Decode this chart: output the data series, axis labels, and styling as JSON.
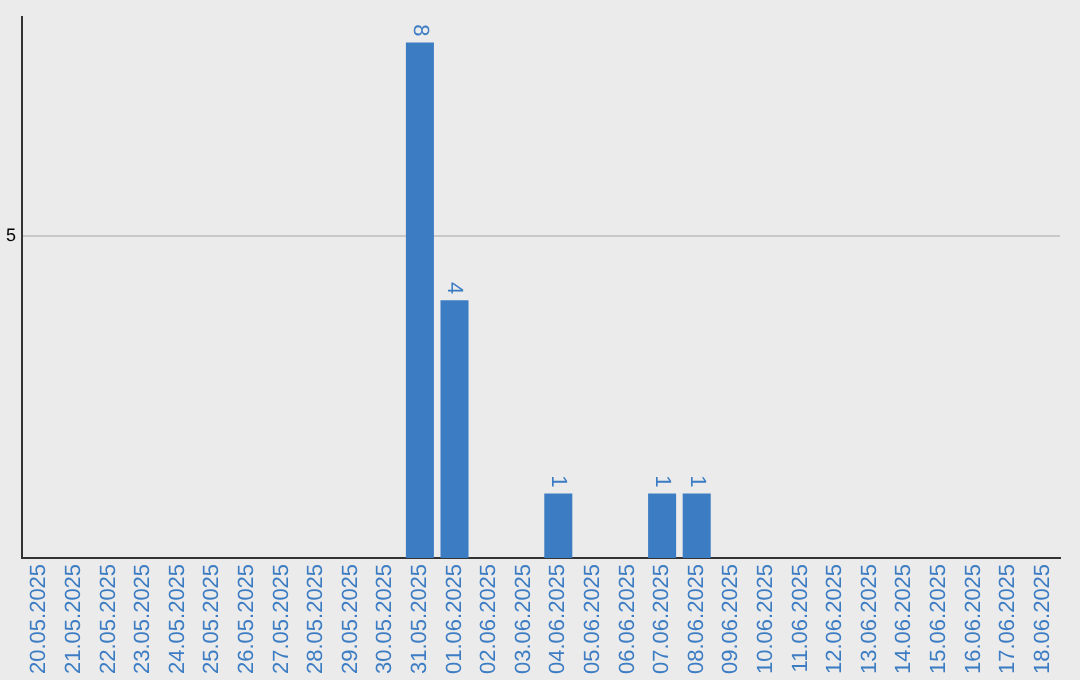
{
  "chart_data": {
    "type": "bar",
    "categories": [
      "20.05.2025",
      "21.05.2025",
      "22.05.2025",
      "23.05.2025",
      "24.05.2025",
      "25.05.2025",
      "26.05.2025",
      "27.05.2025",
      "28.05.2025",
      "29.05.2025",
      "30.05.2025",
      "31.05.2025",
      "01.06.2025",
      "02.06.2025",
      "03.06.2025",
      "04.06.2025",
      "05.06.2025",
      "06.06.2025",
      "07.06.2025",
      "08.06.2025",
      "09.06.2025",
      "10.06.2025",
      "11.06.2025",
      "12.06.2025",
      "13.06.2025",
      "14.06.2025",
      "15.06.2025",
      "16.06.2025",
      "17.06.2025",
      "18.06.2025"
    ],
    "values": [
      0,
      0,
      0,
      0,
      0,
      0,
      0,
      0,
      0,
      0,
      0,
      8,
      4,
      0,
      0,
      1,
      0,
      0,
      1,
      1,
      0,
      0,
      0,
      0,
      0,
      0,
      0,
      0,
      0,
      0
    ],
    "value_labels": [
      null,
      null,
      null,
      null,
      null,
      null,
      null,
      null,
      null,
      null,
      null,
      "8",
      "4",
      null,
      null,
      "1",
      null,
      null,
      "1",
      "1",
      null,
      null,
      null,
      null,
      null,
      null,
      null,
      null,
      null,
      null
    ],
    "color": "#3c7cc3",
    "ylim": [
      0,
      8.4
    ],
    "yticks": [
      5
    ],
    "grid": "y",
    "legend": false
  }
}
